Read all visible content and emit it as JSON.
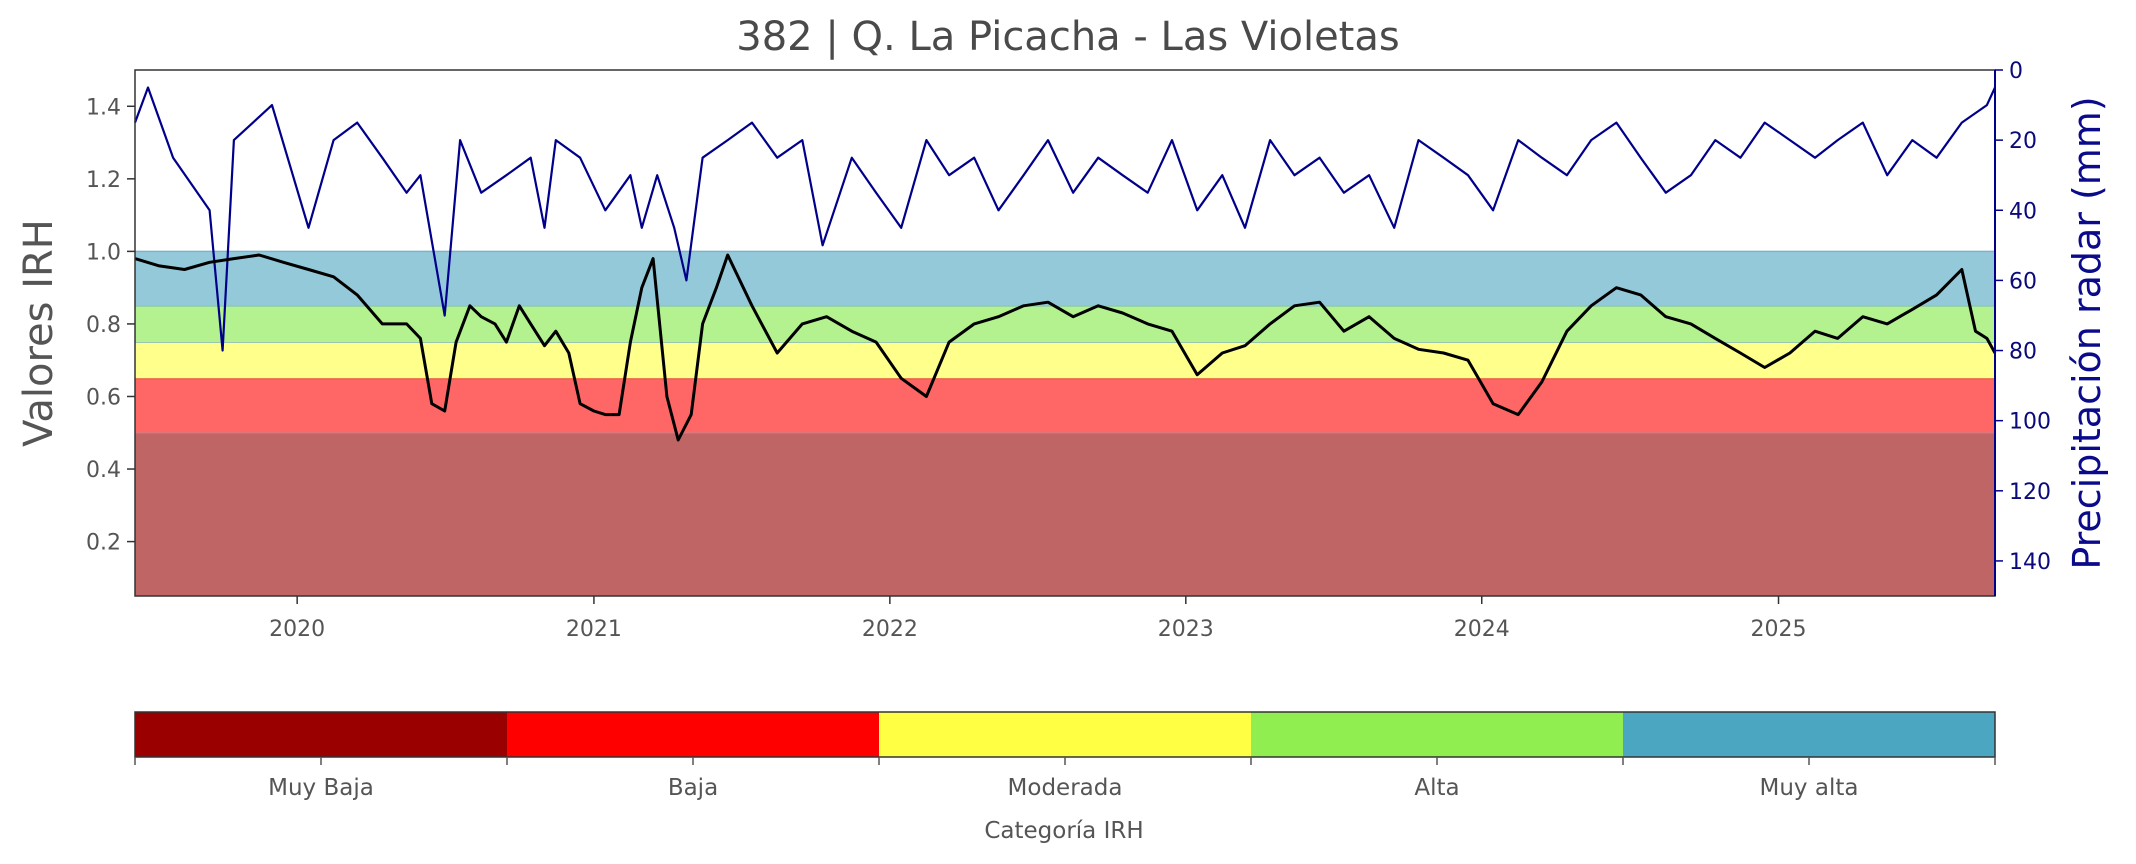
{
  "chart_data": {
    "type": "line",
    "title": "382 | Q. La Picacha - Las Violetas",
    "ylabel_left": "Valores IRH",
    "ylabel_right": "Precipitación radar (mm)",
    "xlim": [
      "2019-06-15",
      "2025-09-25"
    ],
    "ylim_left": [
      0.05,
      1.5
    ],
    "ylim_right_inverted": [
      150,
      0
    ],
    "x_ticks": [
      "2020",
      "2021",
      "2022",
      "2023",
      "2024",
      "2025"
    ],
    "y_ticks_left": [
      "0.2",
      "0.4",
      "0.6",
      "0.8",
      "1.0",
      "1.2",
      "1.4"
    ],
    "y_ticks_right": [
      "0",
      "20",
      "40",
      "60",
      "80",
      "100",
      "120",
      "140"
    ],
    "grid": false,
    "colors": {
      "irh_line": "#000000",
      "precip_line": "#00008b",
      "band_muy_baja": "#c06565",
      "band_baja": "#ff6666",
      "band_moderada": "#ffff8c",
      "band_alta": "#b3f28f",
      "band_muy_alta": "#94c9da"
    },
    "bands": [
      {
        "category": "Muy Baja",
        "from": 0.05,
        "to": 0.5
      },
      {
        "category": "Baja",
        "from": 0.5,
        "to": 0.65
      },
      {
        "category": "Moderada",
        "from": 0.65,
        "to": 0.75
      },
      {
        "category": "Alta",
        "from": 0.75,
        "to": 0.85
      },
      {
        "category": "Muy alta",
        "from": 0.85,
        "to": 1.0
      }
    ],
    "series": [
      {
        "axis": "left",
        "x": [
          "2019-06-15",
          "2019-07-15",
          "2019-08-15",
          "2019-09-15",
          "2019-10-15",
          "2019-11-15",
          "2019-12-15",
          "2020-01-15",
          "2020-02-15",
          "2020-03-15",
          "2020-04-15",
          "2020-05-15",
          "2020-06-01",
          "2020-06-15",
          "2020-07-01",
          "2020-07-15",
          "2020-08-01",
          "2020-08-15",
          "2020-09-01",
          "2020-09-15",
          "2020-10-01",
          "2020-10-15",
          "2020-11-01",
          "2020-11-15",
          "2020-12-01",
          "2020-12-15",
          "2021-01-01",
          "2021-01-15",
          "2021-02-01",
          "2021-02-15",
          "2021-03-01",
          "2021-03-15",
          "2021-04-01",
          "2021-04-15",
          "2021-05-01",
          "2021-05-15",
          "2021-06-01",
          "2021-06-15",
          "2021-07-15",
          "2021-08-15",
          "2021-09-15",
          "2021-10-15",
          "2021-11-15",
          "2021-12-15",
          "2022-01-15",
          "2022-02-15",
          "2022-03-15",
          "2022-04-15",
          "2022-05-15",
          "2022-06-15",
          "2022-07-15",
          "2022-08-15",
          "2022-09-15",
          "2022-10-15",
          "2022-11-15",
          "2022-12-15",
          "2023-01-15",
          "2023-02-15",
          "2023-03-15",
          "2023-04-15",
          "2023-05-15",
          "2023-06-15",
          "2023-07-15",
          "2023-08-15",
          "2023-09-15",
          "2023-10-15",
          "2023-11-15",
          "2023-12-15",
          "2024-01-15",
          "2024-02-15",
          "2024-03-15",
          "2024-04-15",
          "2024-05-15",
          "2024-06-15",
          "2024-07-15",
          "2024-08-15",
          "2024-09-15",
          "2024-10-15",
          "2024-11-15",
          "2024-12-15",
          "2025-01-15",
          "2025-02-15",
          "2025-03-15",
          "2025-04-15",
          "2025-05-15",
          "2025-06-15",
          "2025-07-15",
          "2025-08-15",
          "2025-09-01",
          "2025-09-15",
          "2025-09-25"
        ],
        "values": [
          0.98,
          0.96,
          0.95,
          0.97,
          0.98,
          0.99,
          0.97,
          0.95,
          0.93,
          0.88,
          0.8,
          0.8,
          0.76,
          0.58,
          0.56,
          0.75,
          0.85,
          0.82,
          0.8,
          0.75,
          0.85,
          0.8,
          0.74,
          0.78,
          0.72,
          0.58,
          0.56,
          0.55,
          0.55,
          0.75,
          0.9,
          0.98,
          0.6,
          0.48,
          0.55,
          0.8,
          0.9,
          0.99,
          0.85,
          0.72,
          0.8,
          0.82,
          0.78,
          0.75,
          0.65,
          0.6,
          0.75,
          0.8,
          0.82,
          0.85,
          0.86,
          0.82,
          0.85,
          0.83,
          0.8,
          0.78,
          0.66,
          0.72,
          0.74,
          0.8,
          0.85,
          0.86,
          0.78,
          0.82,
          0.76,
          0.73,
          0.72,
          0.7,
          0.58,
          0.55,
          0.64,
          0.78,
          0.85,
          0.9,
          0.88,
          0.82,
          0.8,
          0.76,
          0.72,
          0.68,
          0.72,
          0.78,
          0.76,
          0.82,
          0.8,
          0.84,
          0.88,
          0.95,
          0.78,
          0.76,
          0.72
        ]
      },
      {
        "axis": "right",
        "x": [
          "2019-06-15",
          "2019-07-01",
          "2019-08-01",
          "2019-09-15",
          "2019-10-01",
          "2019-10-15",
          "2019-12-01",
          "2020-01-15",
          "2020-02-15",
          "2020-03-15",
          "2020-04-15",
          "2020-05-15",
          "2020-06-01",
          "2020-07-01",
          "2020-07-20",
          "2020-08-15",
          "2020-09-15",
          "2020-10-15",
          "2020-11-01",
          "2020-11-15",
          "2020-12-15",
          "2021-01-15",
          "2021-02-15",
          "2021-03-01",
          "2021-03-20",
          "2021-04-10",
          "2021-04-25",
          "2021-05-15",
          "2021-06-15",
          "2021-07-15",
          "2021-08-15",
          "2021-09-15",
          "2021-10-10",
          "2021-11-15",
          "2021-12-15",
          "2022-01-15",
          "2022-02-15",
          "2022-03-15",
          "2022-04-15",
          "2022-05-15",
          "2022-06-15",
          "2022-07-15",
          "2022-08-15",
          "2022-09-15",
          "2022-10-15",
          "2022-11-15",
          "2022-12-15",
          "2023-01-15",
          "2023-02-15",
          "2023-03-15",
          "2023-04-15",
          "2023-05-15",
          "2023-06-15",
          "2023-07-15",
          "2023-08-15",
          "2023-09-15",
          "2023-10-15",
          "2023-11-15",
          "2023-12-15",
          "2024-01-15",
          "2024-02-15",
          "2024-03-15",
          "2024-04-15",
          "2024-05-15",
          "2024-06-15",
          "2024-07-15",
          "2024-08-15",
          "2024-09-15",
          "2024-10-15",
          "2024-11-15",
          "2024-12-15",
          "2025-01-15",
          "2025-02-15",
          "2025-03-15",
          "2025-04-15",
          "2025-05-15",
          "2025-06-15",
          "2025-07-15",
          "2025-08-15",
          "2025-09-15",
          "2025-09-25"
        ],
        "values": [
          15,
          5,
          25,
          40,
          80,
          20,
          10,
          45,
          20,
          15,
          25,
          35,
          30,
          70,
          20,
          35,
          30,
          25,
          45,
          20,
          25,
          40,
          30,
          45,
          30,
          45,
          60,
          25,
          20,
          15,
          25,
          20,
          50,
          25,
          35,
          45,
          20,
          30,
          25,
          40,
          30,
          20,
          35,
          25,
          30,
          35,
          20,
          40,
          30,
          45,
          20,
          30,
          25,
          35,
          30,
          45,
          20,
          25,
          30,
          40,
          20,
          25,
          30,
          20,
          15,
          25,
          35,
          30,
          20,
          25,
          15,
          20,
          25,
          20,
          15,
          30,
          20,
          25,
          15,
          10,
          5
        ]
      }
    ],
    "colorbar": {
      "title": "Categoría IRH",
      "categories": [
        "Muy Baja",
        "Baja",
        "Moderada",
        "Alta",
        "Muy alta"
      ],
      "colors": [
        "#9b0000",
        "#ff0000",
        "#ffff44",
        "#90ee50",
        "#4ba6c2"
      ]
    }
  }
}
